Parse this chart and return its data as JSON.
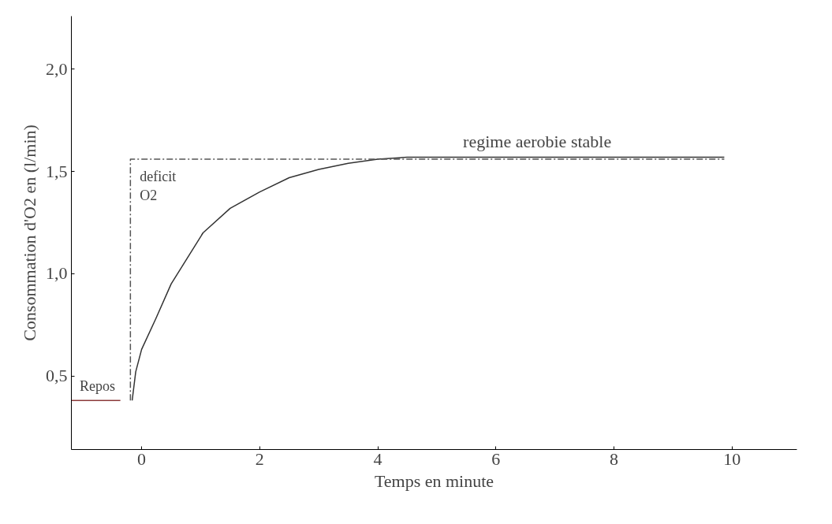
{
  "chart_data": {
    "type": "line",
    "xlabel": "Temps en minute",
    "ylabel": "Consommation d'O2 en (l/min)",
    "xlim": [
      -1.19,
      11.1
    ],
    "ylim": [
      0.14,
      2.26
    ],
    "xticks": [
      0,
      2,
      4,
      6,
      8,
      10
    ],
    "yticks": [
      {
        "value": 0.5,
        "label": "0,5"
      },
      {
        "value": 1.0,
        "label": "1,0"
      },
      {
        "value": 1.5,
        "label": "1,5"
      },
      {
        "value": 2.0,
        "label": "2,0"
      }
    ],
    "grid": false,
    "marker": "none",
    "series": [
      {
        "color": "#8b3a3a",
        "x": [
          -1.19,
          -0.36
        ],
        "values": [
          0.38,
          0.38
        ]
      },
      {
        "color": "#333333",
        "x": [
          -0.16,
          -0.1,
          0,
          0.24,
          0.5,
          1.04,
          1.5,
          2,
          2.5,
          3,
          3.5,
          4,
          4.5,
          9.87
        ],
        "values": [
          0.38,
          0.52,
          0.63,
          0.78,
          0.95,
          1.2,
          1.32,
          1.4,
          1.47,
          1.51,
          1.54,
          1.56,
          1.57,
          1.57
        ]
      },
      {
        "color": "#555555",
        "line_style": "dashed",
        "x": [
          -0.19,
          -0.19,
          9.87
        ],
        "values": [
          0.38,
          1.56,
          1.56
        ]
      }
    ],
    "annotations": [
      {
        "text": "Repos",
        "x": -0.75,
        "y": 0.38
      },
      "deficit\nO2",
      {
        "text": "regime aerobie stable",
        "x": 6.7,
        "y": 1.57
      }
    ]
  }
}
